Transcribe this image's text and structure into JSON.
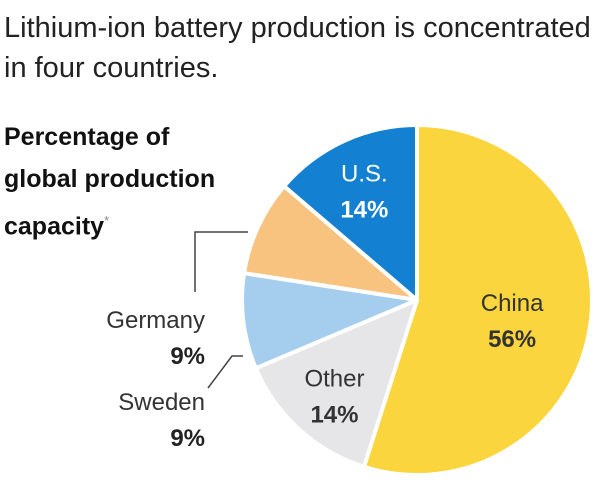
{
  "chart_data": {
    "type": "pie",
    "title": "Lithium-ion battery production is concentrated in four countries.",
    "subtitle": "Percentage of global production capacity",
    "subtitle_mark": "*",
    "slices": [
      {
        "name": "China",
        "value": 56,
        "label": "56%",
        "color": "#fad53e",
        "text_color": "#333333"
      },
      {
        "name": "Other",
        "value": 14,
        "label": "14%",
        "color": "#e6e6e9",
        "text_color": "#333333"
      },
      {
        "name": "Sweden",
        "value": 9,
        "label": "9%",
        "color": "#a5cdee",
        "text_color": "#333333"
      },
      {
        "name": "Germany",
        "value": 9,
        "label": "9%",
        "color": "#f8c27f",
        "text_color": "#333333"
      },
      {
        "name": "U.S.",
        "value": 14,
        "label": "14%",
        "color": "#1380d2",
        "text_color": "#ffffff"
      }
    ]
  }
}
